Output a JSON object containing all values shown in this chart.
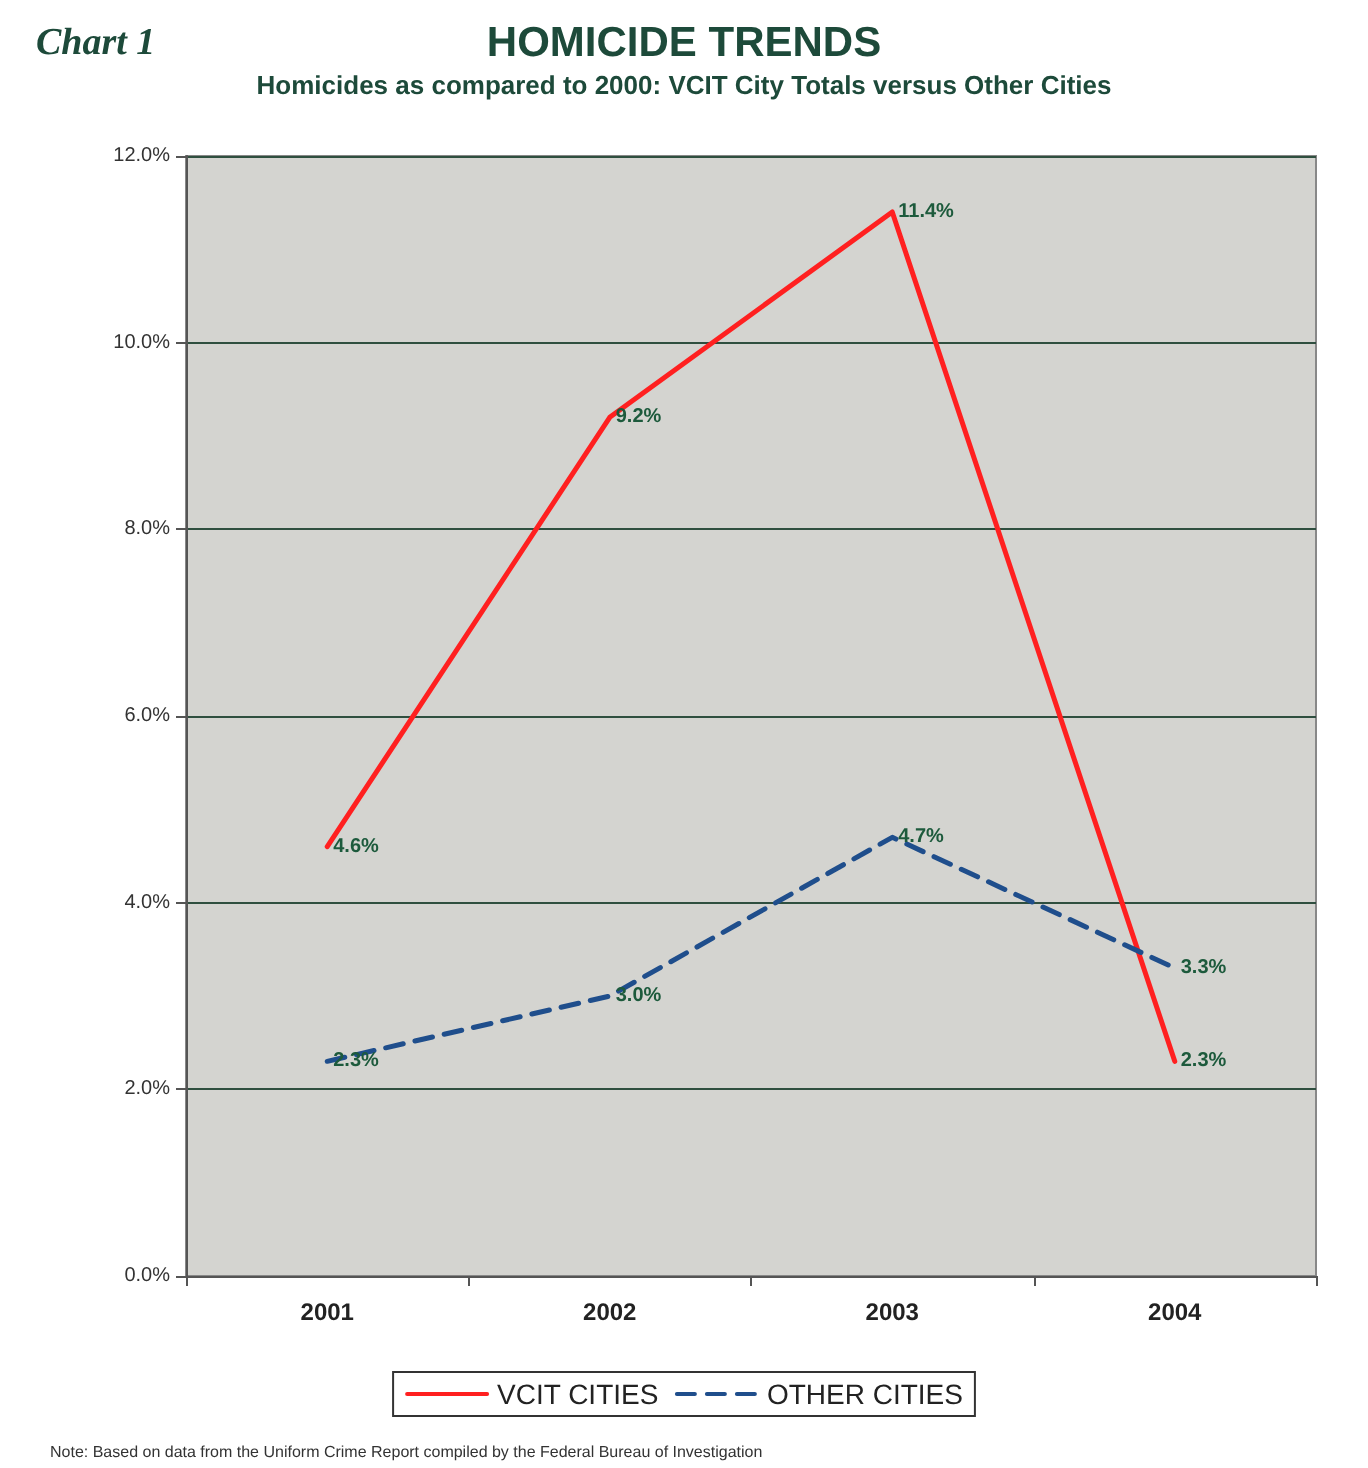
{
  "chart_data": {
    "type": "line",
    "title": "HOMICIDE TRENDS",
    "subtitle": "Homicides as compared to 2000: VCIT City Totals versus Other Cities",
    "annotations": [
      "Chart 1",
      "Note: Based on data from the Uniform Crime Report compiled by the Federal Bureau of Investigation"
    ],
    "categories": [
      "2001",
      "2002",
      "2003",
      "2004"
    ],
    "series": [
      {
        "name": "VCIT CITIES",
        "color": "#ff2020",
        "values": [
          4.6,
          9.2,
          11.4,
          2.3
        ],
        "value_labels": [
          "4.6%",
          "9.2%",
          "11.4%",
          "2.3%"
        ],
        "line_style": "solid"
      },
      {
        "name": "OTHER CITIES",
        "color": "#1f4e8c",
        "values": [
          2.3,
          3.0,
          4.7,
          3.3
        ],
        "value_labels": [
          "2.3%",
          "3.0%",
          "4.7%",
          "3.3%"
        ],
        "line_style": "dashed"
      }
    ],
    "ylim": [
      0,
      12
    ],
    "yticks": [
      {
        "value": 0,
        "label": "0.0%"
      },
      {
        "value": 2,
        "label": "2.0%"
      },
      {
        "value": 4,
        "label": "4.0%"
      },
      {
        "value": 6,
        "label": "6.0%"
      },
      {
        "value": 8,
        "label": "8.0%"
      },
      {
        "value": 10,
        "label": "10.0%"
      },
      {
        "value": 12,
        "label": "12.0%"
      }
    ],
    "grid": "y",
    "legend": "bottom",
    "marker": "none"
  }
}
